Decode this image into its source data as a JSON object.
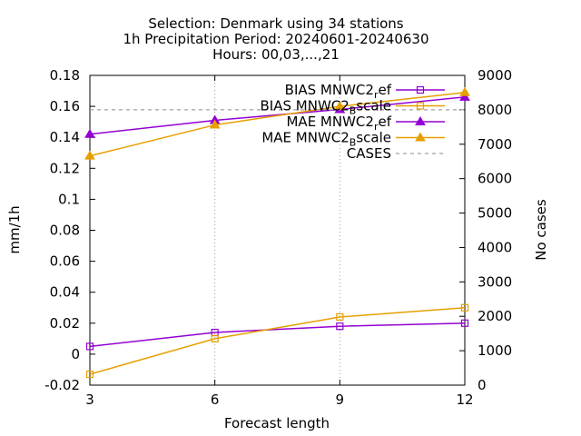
{
  "chart_data": {
    "type": "line",
    "title_lines": [
      "Selection: Denmark using    34 stations",
      "1h Precipitation   Period: 20240601-20240630",
      "Hours: 00,03,...,21"
    ],
    "xlabel": "Forecast length",
    "ylabel": "mm/1h",
    "y2label": "No cases",
    "x": [
      3,
      6,
      9,
      12
    ],
    "xlim": [
      3,
      12
    ],
    "ylim": [
      -0.02,
      0.18
    ],
    "y2lim": [
      0,
      9000
    ],
    "xticks": [
      "3",
      "6",
      "9",
      "12"
    ],
    "yticks": [
      "-0.02",
      "0",
      "0.02",
      "0.04",
      "0.06",
      "0.08",
      "0.1",
      "0.12",
      "0.14",
      "0.16",
      "0.18"
    ],
    "y2ticks": [
      "0",
      "1000",
      "2000",
      "3000",
      "4000",
      "5000",
      "6000",
      "7000",
      "8000",
      "9000"
    ],
    "grid": "x-only dotted",
    "legend_position": "top-right",
    "series": [
      {
        "id": "bias_ref",
        "name_main": "BIAS MNWC2",
        "name_sub": "r",
        "name_tail": "ef",
        "marker": "square",
        "axis": "y1",
        "color": "#9400d3",
        "values": [
          0.005,
          0.014,
          0.018,
          0.02
        ]
      },
      {
        "id": "bias_scale",
        "name_main": "BIAS MNWC2",
        "name_sub": "B",
        "name_tail": "scale",
        "marker": "square",
        "axis": "y1",
        "color": "#e69f00",
        "values": [
          -0.013,
          0.01,
          0.024,
          0.03
        ]
      },
      {
        "id": "mae_ref",
        "name_main": "MAE MNWC2",
        "name_sub": "r",
        "name_tail": "ef",
        "marker": "triangle",
        "axis": "y1",
        "color": "#9400d3",
        "values": [
          0.142,
          0.151,
          0.158,
          0.166
        ]
      },
      {
        "id": "mae_scale",
        "name_main": "MAE MNWC2",
        "name_sub": "B",
        "name_tail": "scale",
        "marker": "triangle",
        "axis": "y1",
        "color": "#e69f00",
        "values": [
          0.128,
          0.148,
          0.16,
          0.169
        ]
      },
      {
        "id": "cases",
        "name_main": "CASES",
        "name_sub": "",
        "name_tail": "",
        "marker": "none",
        "axis": "y2",
        "color": "#a0a0a0",
        "dashed": true,
        "values": [
          8000,
          8000,
          8000,
          8000
        ]
      }
    ]
  }
}
